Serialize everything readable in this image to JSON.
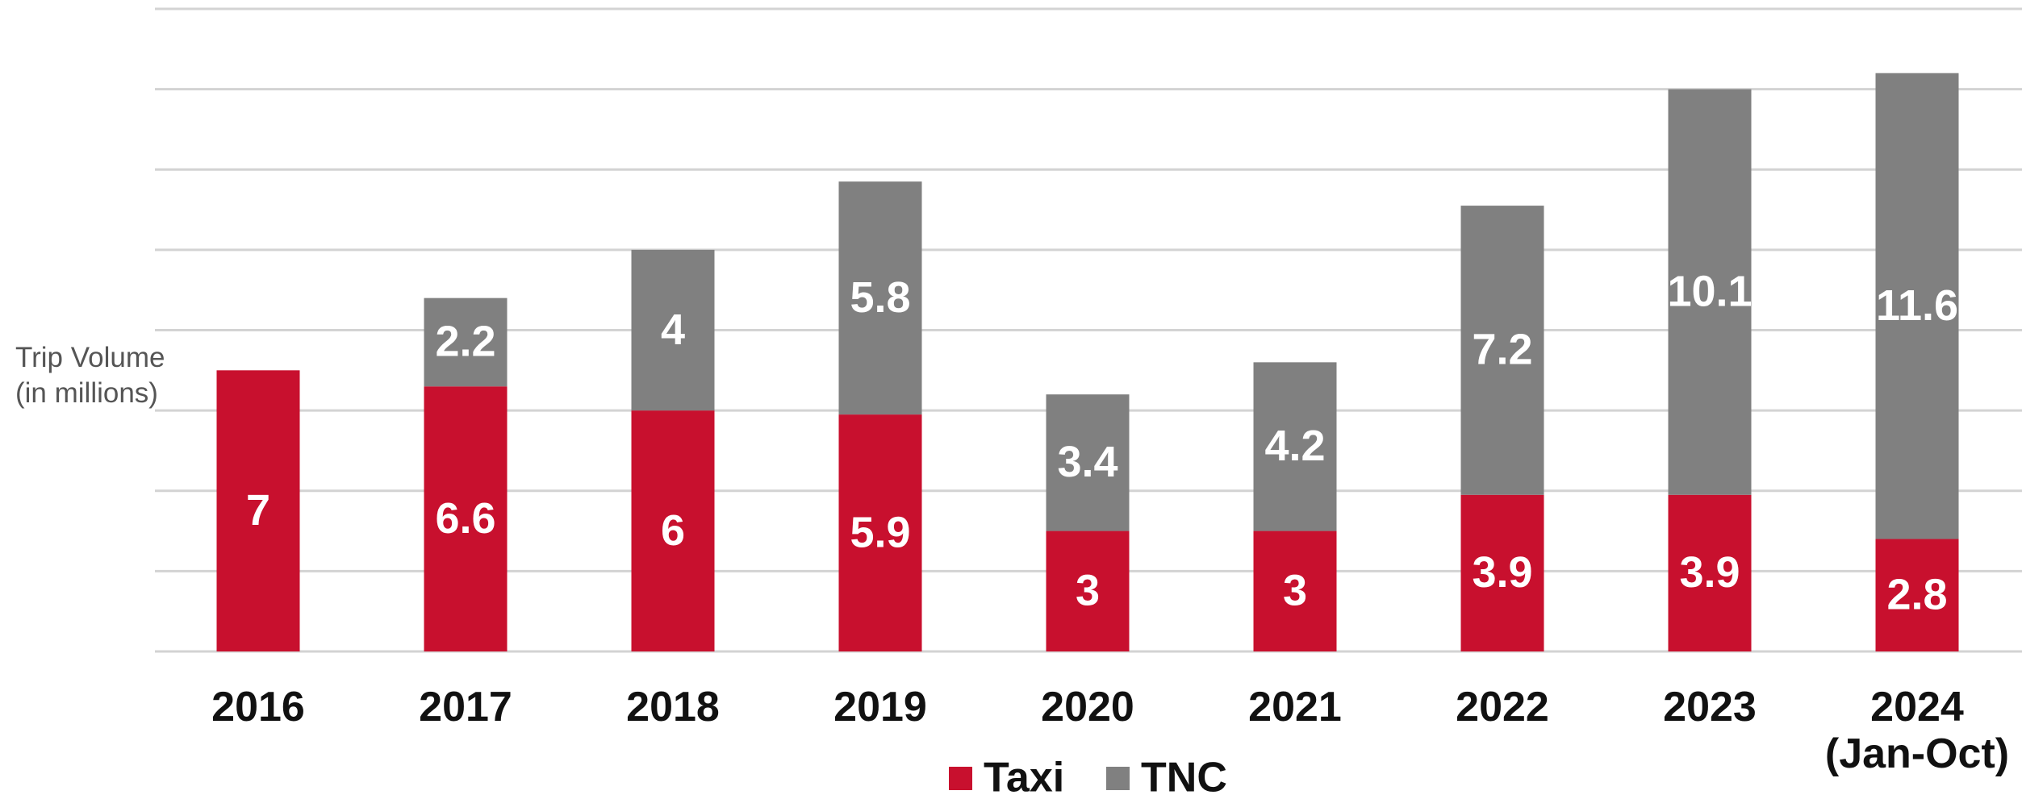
{
  "chart_data": {
    "type": "stacked_bar",
    "y_label": "Trip Volume (in millions)",
    "categories": [
      "2016",
      "2017",
      "2018",
      "2019",
      "2020",
      "2021",
      "2022",
      "2023",
      "2024 (Jan-Oct)"
    ],
    "series": [
      {
        "name": "Taxi",
        "color": "#c8102e",
        "values": [
          7,
          6.6,
          6,
          5.9,
          3,
          3,
          3.9,
          3.9,
          2.8
        ]
      },
      {
        "name": "TNC",
        "color": "#808080",
        "values": [
          null,
          2.2,
          4,
          5.8,
          3.4,
          4.2,
          7.2,
          10.1,
          11.6
        ]
      }
    ],
    "ylim": [
      0,
      16
    ],
    "yticks": [
      0,
      2,
      4,
      6,
      8,
      10,
      12,
      14,
      16
    ],
    "grid": true
  }
}
